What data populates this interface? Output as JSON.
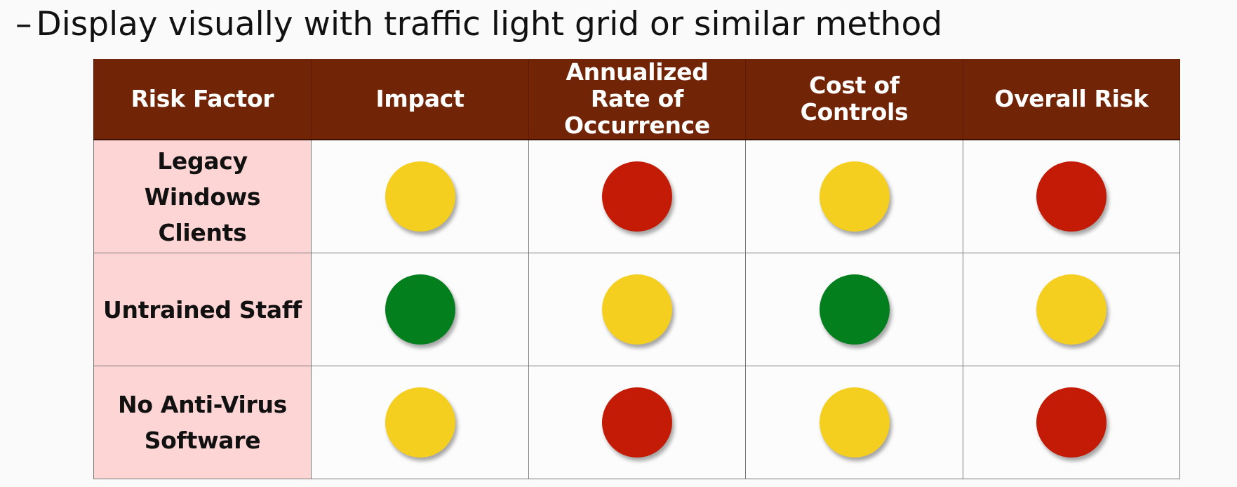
{
  "bullet": {
    "dash": "–",
    "text": "Display visually with traffic light grid or similar method"
  },
  "table": {
    "headers": [
      "Risk Factor",
      "Impact",
      "Annualized Rate of Occurrence",
      "Cost of Controls",
      "Overall Risk"
    ],
    "rows": [
      {
        "factor": "Legacy Windows Clients",
        "ratings": [
          "yellow",
          "red",
          "yellow",
          "red"
        ]
      },
      {
        "factor": "Untrained Staff",
        "ratings": [
          "green",
          "yellow",
          "green",
          "yellow"
        ]
      },
      {
        "factor": "No Anti-Virus Software",
        "ratings": [
          "yellow",
          "red",
          "yellow",
          "red"
        ]
      }
    ]
  },
  "colors": {
    "header_bg": "#722407",
    "factor_bg": "#fdd5d5",
    "red": "#c31b06",
    "yellow": "#f5cf1f",
    "green": "#037f1e"
  }
}
